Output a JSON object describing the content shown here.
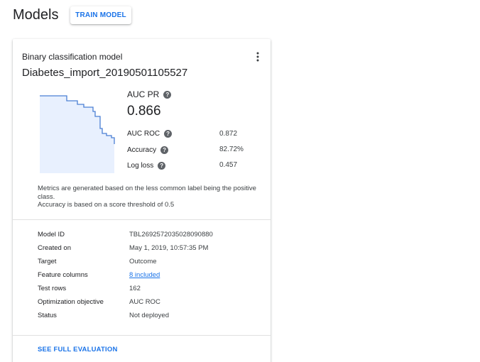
{
  "header": {
    "title": "Models",
    "train_button": "TRAIN MODEL"
  },
  "card": {
    "subtitle": "Binary classification model",
    "title": "Diabetes_import_20190501105527",
    "more_icon": "more-vert-icon",
    "auc_pr": {
      "label": "AUC PR",
      "value": "0.866"
    },
    "metrics": [
      {
        "label": "AUC ROC",
        "value": "0.872"
      },
      {
        "label": "Accuracy",
        "value": "82.72%"
      },
      {
        "label": "Log loss",
        "value": "0.457"
      }
    ],
    "note_line1": "Metrics are generated based on the less common label being the positive class.",
    "note_line2": "Accuracy is based on a score threshold of 0.5",
    "details": [
      {
        "label": "Model ID",
        "value": "TBL2692572035028090880"
      },
      {
        "label": "Created on",
        "value": "May 1, 2019, 10:57:35 PM"
      },
      {
        "label": "Target",
        "value": "Outcome"
      },
      {
        "label": "Feature columns",
        "value": "8 included"
      },
      {
        "label": "Test rows",
        "value": "162"
      },
      {
        "label": "Optimization objective",
        "value": "AUC ROC"
      },
      {
        "label": "Status",
        "value": "Not deployed"
      }
    ],
    "full_evaluation": "SEE FULL EVALUATION"
  },
  "colors": {
    "accent": "#1a73e8",
    "chart_fill": "#e8f0fe",
    "chart_line": "#4a7fd4"
  }
}
